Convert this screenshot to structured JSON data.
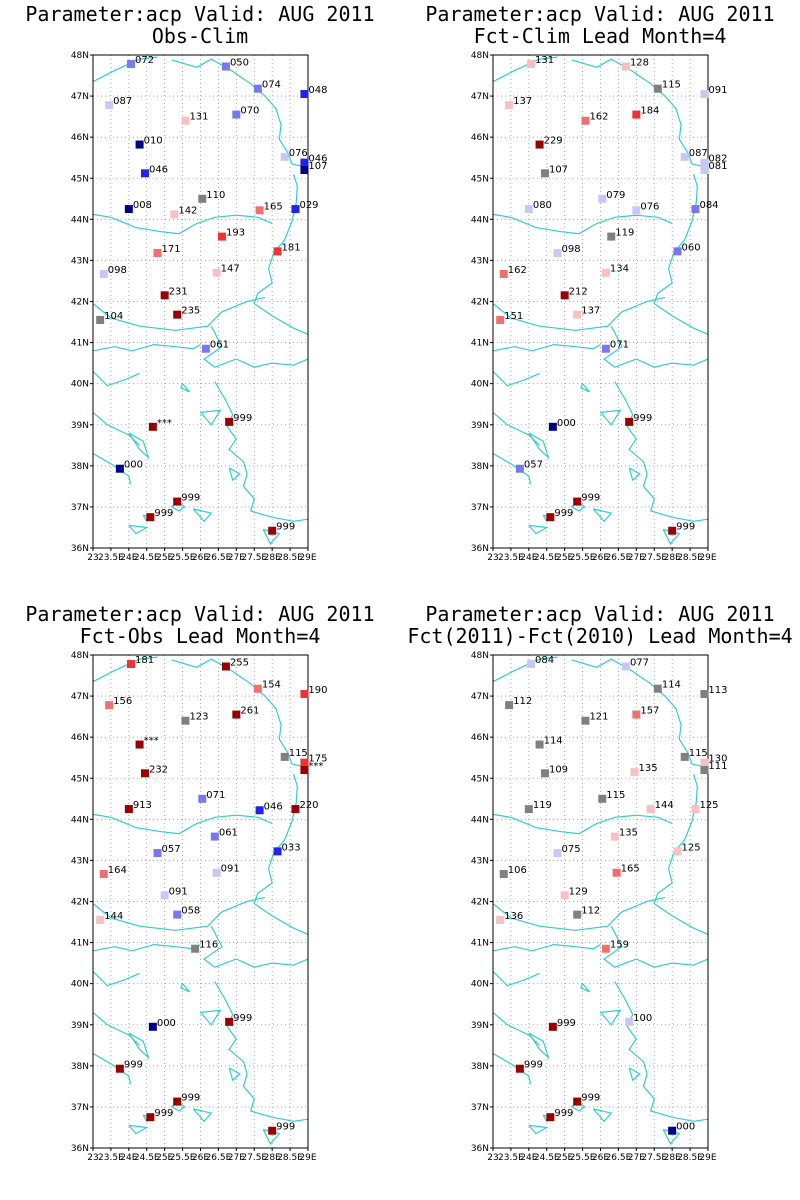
{
  "map_bounds": {
    "lon": [
      23,
      29
    ],
    "lat": [
      36,
      48
    ]
  },
  "lat_ticks": [
    "36N",
    "37N",
    "38N",
    "39N",
    "40N",
    "41N",
    "42N",
    "43N",
    "44N",
    "45N",
    "46N",
    "47N",
    "48N"
  ],
  "lon_ticks": [
    "23",
    "23.5E",
    "24E",
    "24.5E",
    "25E",
    "25.5E",
    "26E",
    "26.5E",
    "27E",
    "27.5E",
    "28E",
    "28.5E",
    "29E"
  ],
  "colors": {
    "coast": "#33cccc",
    "grid": "#999999",
    "frame": "#000000",
    "dark_red": "#990000",
    "red": "#ee3333",
    "salmon": "#f07070",
    "pink": "#f8c0c0",
    "gray": "#808080",
    "light_blue": "#c8c8f8",
    "mid_blue": "#7878ee",
    "blue": "#2222ee",
    "navy": "#00008b"
  },
  "panels": [
    {
      "title1": "Parameter:acp Valid: AUG 2011",
      "title2": "Obs-Clim",
      "stations": [
        {
          "lon": 24.06,
          "lat": 47.78,
          "label": "072",
          "color": "mid_blue"
        },
        {
          "lon": 26.71,
          "lat": 47.72,
          "label": "050",
          "color": "mid_blue"
        },
        {
          "lon": 23.45,
          "lat": 46.78,
          "label": "087",
          "color": "light_blue"
        },
        {
          "lon": 27.6,
          "lat": 47.18,
          "label": "074",
          "color": "mid_blue"
        },
        {
          "lon": 28.9,
          "lat": 47.05,
          "label": "048",
          "color": "blue"
        },
        {
          "lon": 24.3,
          "lat": 45.82,
          "label": "010",
          "color": "navy"
        },
        {
          "lon": 25.58,
          "lat": 46.4,
          "label": "131",
          "color": "pink"
        },
        {
          "lon": 27.0,
          "lat": 46.55,
          "label": "070",
          "color": "mid_blue"
        },
        {
          "lon": 28.35,
          "lat": 45.52,
          "label": "076",
          "color": "light_blue"
        },
        {
          "lon": 28.9,
          "lat": 45.38,
          "label": "046",
          "color": "blue"
        },
        {
          "lon": 24.45,
          "lat": 45.12,
          "label": "046",
          "color": "blue"
        },
        {
          "lon": 28.9,
          "lat": 45.2,
          "label": "107",
          "color": "navy"
        },
        {
          "lon": 26.05,
          "lat": 44.5,
          "label": "110",
          "color": "gray"
        },
        {
          "lon": 24.0,
          "lat": 44.25,
          "label": "008",
          "color": "navy"
        },
        {
          "lon": 25.27,
          "lat": 44.12,
          "label": "142",
          "color": "pink"
        },
        {
          "lon": 27.65,
          "lat": 44.22,
          "label": "165",
          "color": "salmon"
        },
        {
          "lon": 28.65,
          "lat": 44.25,
          "label": "029",
          "color": "blue"
        },
        {
          "lon": 26.6,
          "lat": 43.58,
          "label": "193",
          "color": "red"
        },
        {
          "lon": 24.8,
          "lat": 43.18,
          "label": "171",
          "color": "salmon"
        },
        {
          "lon": 28.15,
          "lat": 43.22,
          "label": "181",
          "color": "red"
        },
        {
          "lon": 23.3,
          "lat": 42.67,
          "label": "098",
          "color": "light_blue"
        },
        {
          "lon": 26.45,
          "lat": 42.7,
          "label": "147",
          "color": "pink"
        },
        {
          "lon": 25.0,
          "lat": 42.15,
          "label": "231",
          "color": "dark_red"
        },
        {
          "lon": 23.2,
          "lat": 41.55,
          "label": "104",
          "color": "gray"
        },
        {
          "lon": 25.35,
          "lat": 41.68,
          "label": "235",
          "color": "dark_red"
        },
        {
          "lon": 26.15,
          "lat": 40.85,
          "label": "061",
          "color": "mid_blue"
        },
        {
          "lon": 26.8,
          "lat": 39.07,
          "label": "999",
          "color": "dark_red"
        },
        {
          "lon": 24.67,
          "lat": 38.95,
          "label": "***",
          "color": "dark_red"
        },
        {
          "lon": 23.75,
          "lat": 37.93,
          "label": "000",
          "color": "navy"
        },
        {
          "lon": 25.35,
          "lat": 37.13,
          "label": "999",
          "color": "dark_red"
        },
        {
          "lon": 24.6,
          "lat": 36.75,
          "label": "999",
          "color": "dark_red"
        },
        {
          "lon": 28.0,
          "lat": 36.42,
          "label": "999",
          "color": "dark_red"
        }
      ]
    },
    {
      "title1": "Parameter:acp Valid: AUG 2011",
      "title2": "Fct-Clim Lead Month=4",
      "stations": [
        {
          "lon": 24.06,
          "lat": 47.78,
          "label": "131",
          "color": "pink"
        },
        {
          "lon": 26.71,
          "lat": 47.72,
          "label": "128",
          "color": "pink"
        },
        {
          "lon": 23.45,
          "lat": 46.78,
          "label": "137",
          "color": "pink"
        },
        {
          "lon": 27.6,
          "lat": 47.18,
          "label": "115",
          "color": "gray"
        },
        {
          "lon": 28.9,
          "lat": 47.05,
          "label": "091",
          "color": "light_blue"
        },
        {
          "lon": 24.3,
          "lat": 45.82,
          "label": "229",
          "color": "dark_red"
        },
        {
          "lon": 25.58,
          "lat": 46.4,
          "label": "162",
          "color": "salmon"
        },
        {
          "lon": 27.0,
          "lat": 46.55,
          "label": "184",
          "color": "red"
        },
        {
          "lon": 28.35,
          "lat": 45.52,
          "label": "087",
          "color": "light_blue"
        },
        {
          "lon": 28.9,
          "lat": 45.38,
          "label": "082",
          "color": "light_blue"
        },
        {
          "lon": 24.45,
          "lat": 45.12,
          "label": "107",
          "color": "gray"
        },
        {
          "lon": 28.9,
          "lat": 45.2,
          "label": "081",
          "color": "light_blue"
        },
        {
          "lon": 26.05,
          "lat": 44.5,
          "label": "079",
          "color": "light_blue"
        },
        {
          "lon": 24.0,
          "lat": 44.25,
          "label": "080",
          "color": "light_blue"
        },
        {
          "lon": 27.0,
          "lat": 44.22,
          "label": "076",
          "color": "light_blue"
        },
        {
          "lon": 28.65,
          "lat": 44.25,
          "label": "084",
          "color": "mid_blue"
        },
        {
          "lon": 26.3,
          "lat": 43.58,
          "label": "119",
          "color": "gray"
        },
        {
          "lon": 24.8,
          "lat": 43.18,
          "label": "098",
          "color": "light_blue"
        },
        {
          "lon": 28.15,
          "lat": 43.22,
          "label": "060",
          "color": "mid_blue"
        },
        {
          "lon": 23.3,
          "lat": 42.67,
          "label": "162",
          "color": "salmon"
        },
        {
          "lon": 26.15,
          "lat": 42.7,
          "label": "134",
          "color": "pink"
        },
        {
          "lon": 25.0,
          "lat": 42.15,
          "label": "212",
          "color": "dark_red"
        },
        {
          "lon": 23.2,
          "lat": 41.55,
          "label": "151",
          "color": "salmon"
        },
        {
          "lon": 25.35,
          "lat": 41.68,
          "label": "137",
          "color": "pink"
        },
        {
          "lon": 26.15,
          "lat": 40.85,
          "label": "071",
          "color": "mid_blue"
        },
        {
          "lon": 26.8,
          "lat": 39.07,
          "label": "999",
          "color": "dark_red"
        },
        {
          "lon": 24.67,
          "lat": 38.95,
          "label": "000",
          "color": "navy"
        },
        {
          "lon": 23.75,
          "lat": 37.93,
          "label": "057",
          "color": "mid_blue"
        },
        {
          "lon": 25.35,
          "lat": 37.13,
          "label": "999",
          "color": "dark_red"
        },
        {
          "lon": 24.6,
          "lat": 36.75,
          "label": "999",
          "color": "dark_red"
        },
        {
          "lon": 28.0,
          "lat": 36.42,
          "label": "999",
          "color": "dark_red"
        }
      ]
    },
    {
      "title1": "Parameter:acp Valid: AUG 2011",
      "title2": "Fct-Obs Lead Month=4",
      "stations": [
        {
          "lon": 24.06,
          "lat": 47.78,
          "label": "181",
          "color": "red"
        },
        {
          "lon": 26.71,
          "lat": 47.72,
          "label": "255",
          "color": "dark_red"
        },
        {
          "lon": 23.45,
          "lat": 46.78,
          "label": "156",
          "color": "salmon"
        },
        {
          "lon": 27.6,
          "lat": 47.18,
          "label": "154",
          "color": "salmon"
        },
        {
          "lon": 28.9,
          "lat": 47.05,
          "label": "190",
          "color": "red"
        },
        {
          "lon": 24.3,
          "lat": 45.82,
          "label": "***",
          "color": "dark_red"
        },
        {
          "lon": 25.58,
          "lat": 46.4,
          "label": "123",
          "color": "gray"
        },
        {
          "lon": 27.0,
          "lat": 46.55,
          "label": "261",
          "color": "dark_red"
        },
        {
          "lon": 28.35,
          "lat": 45.52,
          "label": "115",
          "color": "gray"
        },
        {
          "lon": 28.9,
          "lat": 45.38,
          "label": "175",
          "color": "red"
        },
        {
          "lon": 24.45,
          "lat": 45.12,
          "label": "232",
          "color": "dark_red"
        },
        {
          "lon": 28.9,
          "lat": 45.2,
          "label": "***",
          "color": "dark_red"
        },
        {
          "lon": 26.05,
          "lat": 44.5,
          "label": "071",
          "color": "mid_blue"
        },
        {
          "lon": 24.0,
          "lat": 44.25,
          "label": "913",
          "color": "dark_red"
        },
        {
          "lon": 27.65,
          "lat": 44.22,
          "label": "046",
          "color": "blue"
        },
        {
          "lon": 28.65,
          "lat": 44.25,
          "label": "220",
          "color": "dark_red"
        },
        {
          "lon": 26.4,
          "lat": 43.58,
          "label": "061",
          "color": "mid_blue"
        },
        {
          "lon": 24.8,
          "lat": 43.18,
          "label": "057",
          "color": "mid_blue"
        },
        {
          "lon": 28.15,
          "lat": 43.22,
          "label": "033",
          "color": "blue"
        },
        {
          "lon": 23.3,
          "lat": 42.67,
          "label": "164",
          "color": "salmon"
        },
        {
          "lon": 26.45,
          "lat": 42.7,
          "label": "091",
          "color": "light_blue"
        },
        {
          "lon": 25.0,
          "lat": 42.15,
          "label": "091",
          "color": "light_blue"
        },
        {
          "lon": 23.2,
          "lat": 41.55,
          "label": "144",
          "color": "pink"
        },
        {
          "lon": 25.35,
          "lat": 41.68,
          "label": "058",
          "color": "mid_blue"
        },
        {
          "lon": 25.85,
          "lat": 40.85,
          "label": "116",
          "color": "gray"
        },
        {
          "lon": 26.8,
          "lat": 39.07,
          "label": "999",
          "color": "dark_red"
        },
        {
          "lon": 24.67,
          "lat": 38.95,
          "label": "000",
          "color": "navy"
        },
        {
          "lon": 23.75,
          "lat": 37.93,
          "label": "999",
          "color": "dark_red"
        },
        {
          "lon": 25.35,
          "lat": 37.13,
          "label": "999",
          "color": "dark_red"
        },
        {
          "lon": 24.6,
          "lat": 36.75,
          "label": "999",
          "color": "dark_red"
        },
        {
          "lon": 28.0,
          "lat": 36.42,
          "label": "999",
          "color": "dark_red"
        }
      ]
    },
    {
      "title1": "Parameter:acp Valid: AUG 2011",
      "title2": "Fct(2011)-Fct(2010) Lead Month=4",
      "stations": [
        {
          "lon": 24.06,
          "lat": 47.78,
          "label": "084",
          "color": "light_blue"
        },
        {
          "lon": 26.71,
          "lat": 47.72,
          "label": "077",
          "color": "light_blue"
        },
        {
          "lon": 23.45,
          "lat": 46.78,
          "label": "112",
          "color": "gray"
        },
        {
          "lon": 27.6,
          "lat": 47.18,
          "label": "114",
          "color": "gray"
        },
        {
          "lon": 28.9,
          "lat": 47.05,
          "label": "113",
          "color": "gray"
        },
        {
          "lon": 24.3,
          "lat": 45.82,
          "label": "114",
          "color": "gray"
        },
        {
          "lon": 25.58,
          "lat": 46.4,
          "label": "121",
          "color": "gray"
        },
        {
          "lon": 27.0,
          "lat": 46.55,
          "label": "157",
          "color": "salmon"
        },
        {
          "lon": 28.35,
          "lat": 45.52,
          "label": "115",
          "color": "gray"
        },
        {
          "lon": 28.9,
          "lat": 45.38,
          "label": "130",
          "color": "pink"
        },
        {
          "lon": 24.45,
          "lat": 45.12,
          "label": "109",
          "color": "gray"
        },
        {
          "lon": 28.9,
          "lat": 45.2,
          "label": "111",
          "color": "gray"
        },
        {
          "lon": 26.05,
          "lat": 44.5,
          "label": "115",
          "color": "gray"
        },
        {
          "lon": 24.0,
          "lat": 44.25,
          "label": "119",
          "color": "gray"
        },
        {
          "lon": 26.95,
          "lat": 45.15,
          "label": "135",
          "color": "pink"
        },
        {
          "lon": 27.4,
          "lat": 44.25,
          "label": "144",
          "color": "pink"
        },
        {
          "lon": 28.65,
          "lat": 44.25,
          "label": "125",
          "color": "pink"
        },
        {
          "lon": 26.4,
          "lat": 43.58,
          "label": "135",
          "color": "pink"
        },
        {
          "lon": 24.8,
          "lat": 43.18,
          "label": "075",
          "color": "light_blue"
        },
        {
          "lon": 28.15,
          "lat": 43.22,
          "label": "125",
          "color": "pink"
        },
        {
          "lon": 23.3,
          "lat": 42.67,
          "label": "106",
          "color": "gray"
        },
        {
          "lon": 26.45,
          "lat": 42.7,
          "label": "165",
          "color": "salmon"
        },
        {
          "lon": 25.0,
          "lat": 42.15,
          "label": "129",
          "color": "pink"
        },
        {
          "lon": 23.2,
          "lat": 41.55,
          "label": "136",
          "color": "pink"
        },
        {
          "lon": 25.35,
          "lat": 41.68,
          "label": "112",
          "color": "gray"
        },
        {
          "lon": 26.15,
          "lat": 40.85,
          "label": "159",
          "color": "salmon"
        },
        {
          "lon": 26.8,
          "lat": 39.07,
          "label": "100",
          "color": "light_blue"
        },
        {
          "lon": 24.67,
          "lat": 38.95,
          "label": "999",
          "color": "dark_red"
        },
        {
          "lon": 23.75,
          "lat": 37.93,
          "label": "999",
          "color": "dark_red"
        },
        {
          "lon": 25.35,
          "lat": 37.13,
          "label": "999",
          "color": "dark_red"
        },
        {
          "lon": 24.6,
          "lat": 36.75,
          "label": "999",
          "color": "dark_red"
        },
        {
          "lon": 28.0,
          "lat": 36.42,
          "label": "000",
          "color": "navy"
        }
      ]
    }
  ]
}
